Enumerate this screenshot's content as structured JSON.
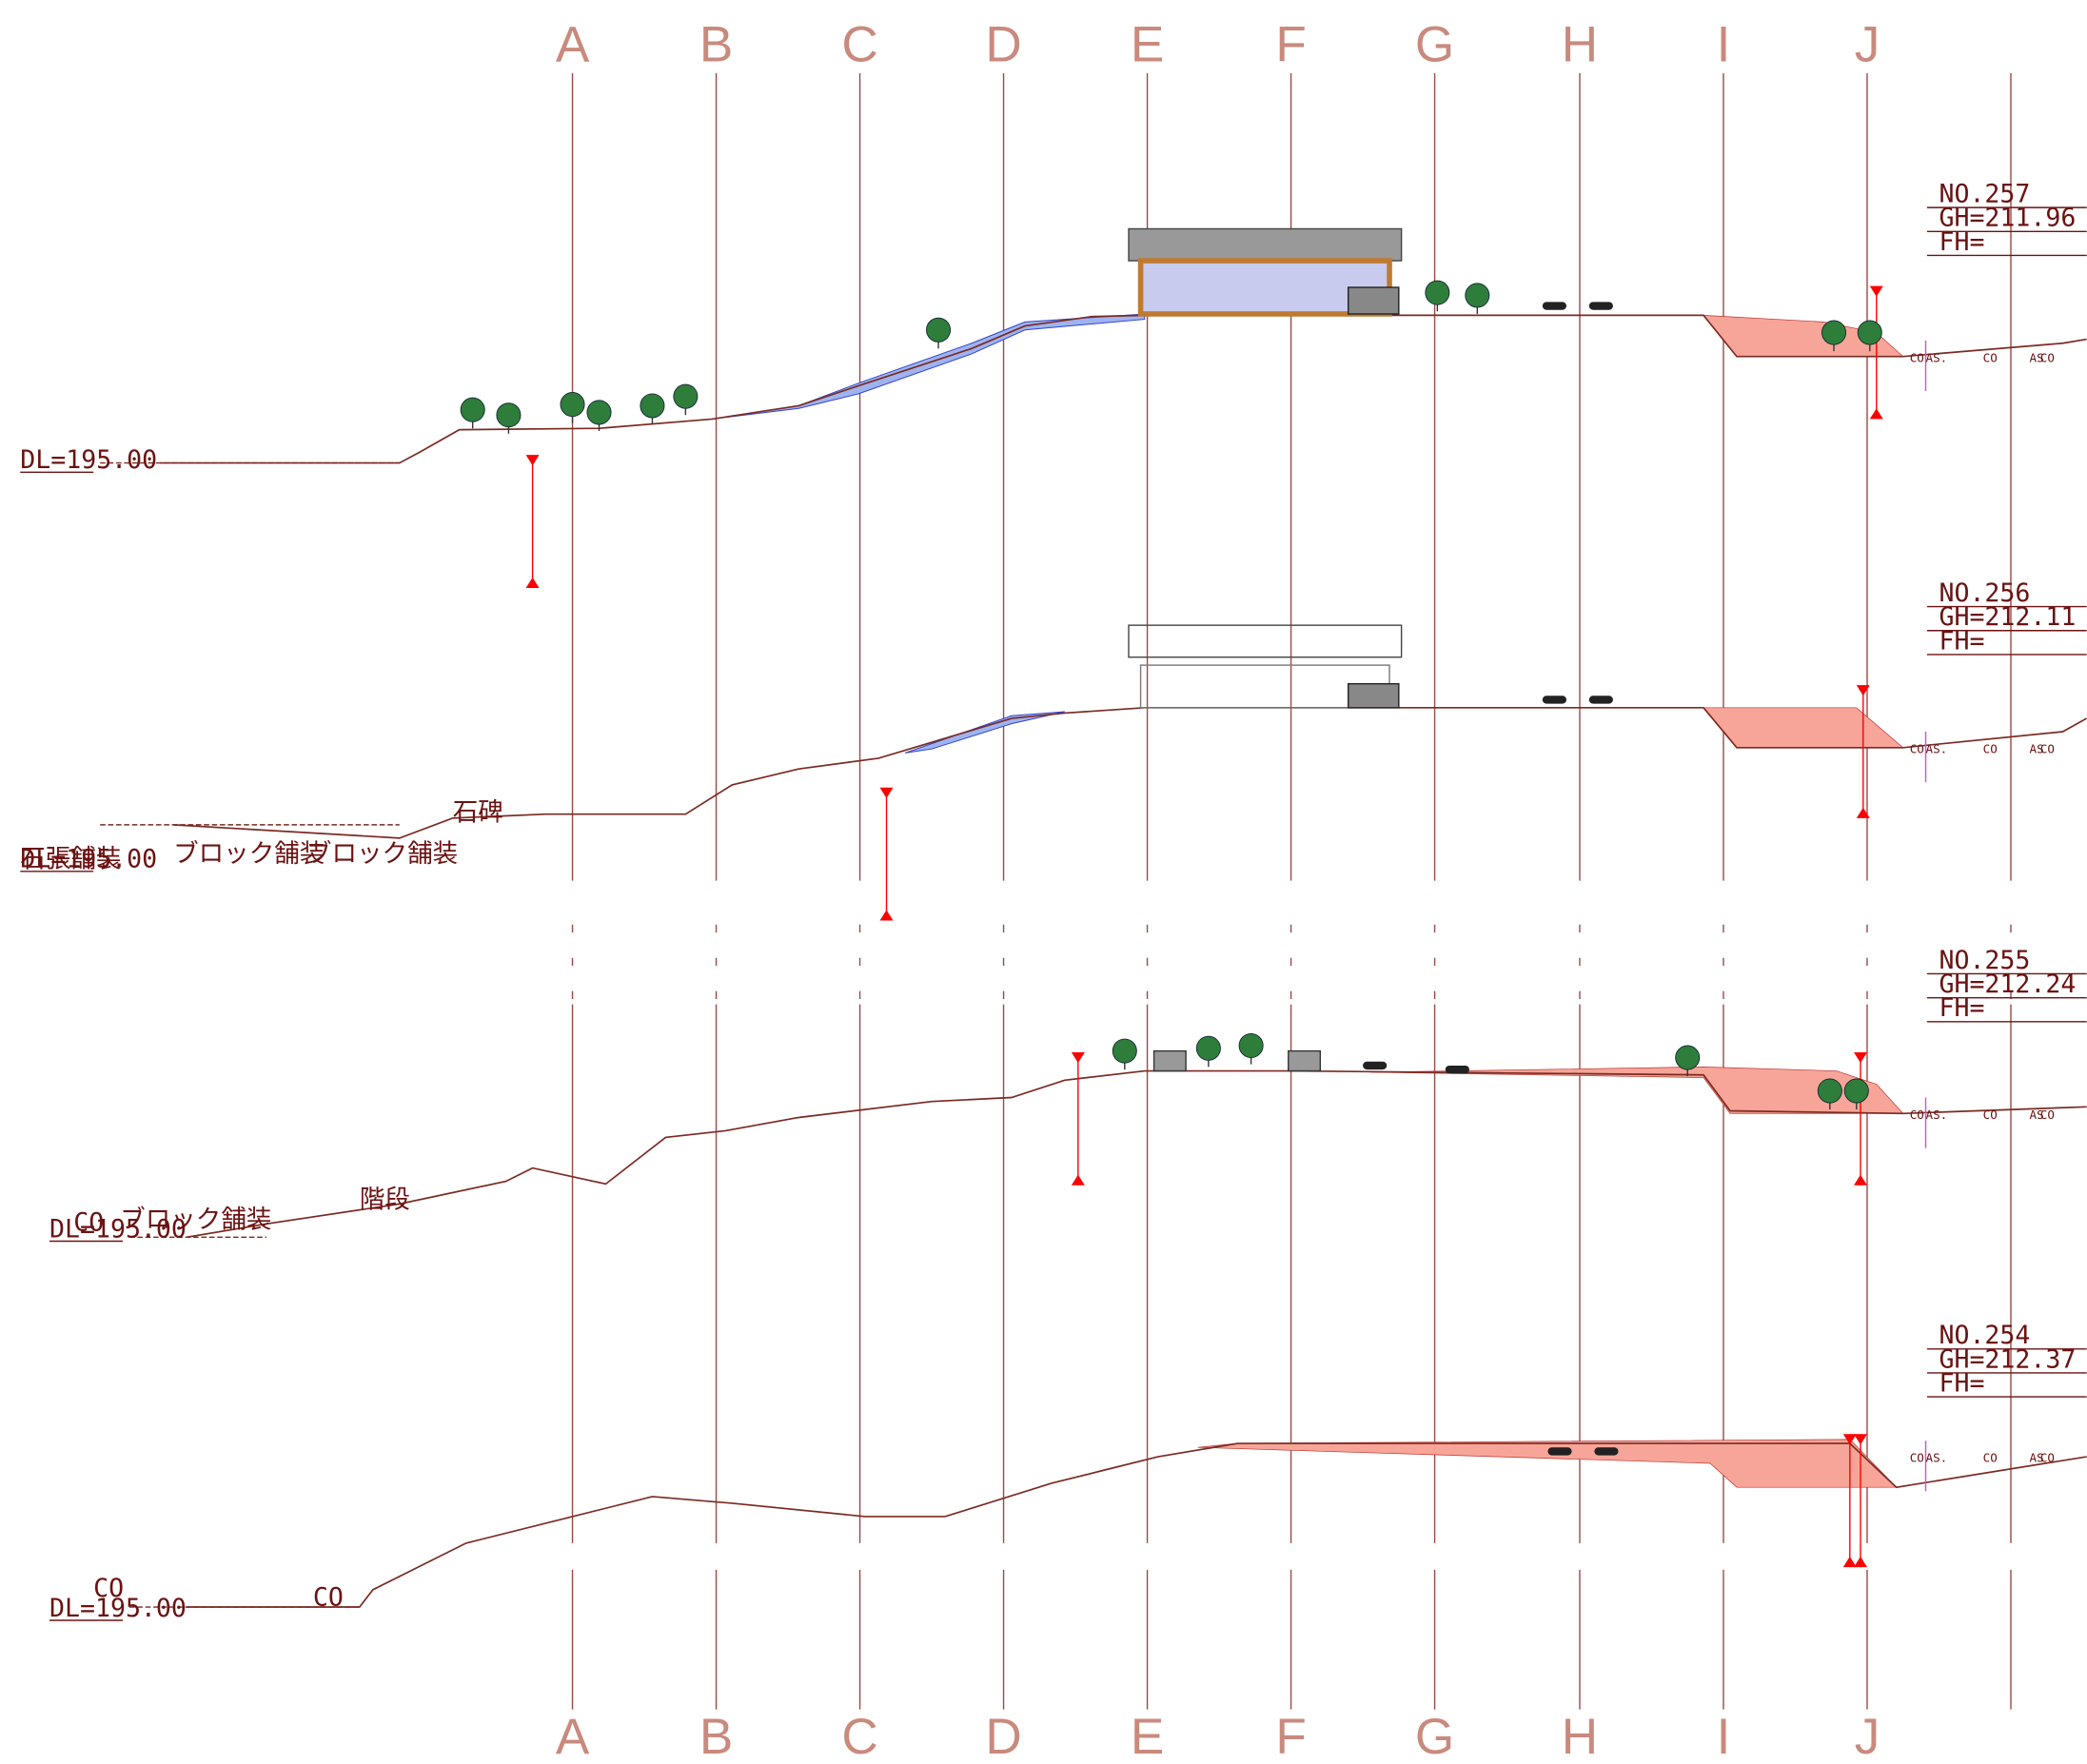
{
  "columns": [
    "A",
    "B",
    "C",
    "D",
    "E",
    "F",
    "G",
    "H",
    "I",
    "J"
  ],
  "sections": [
    {
      "no": "NO.257",
      "gh": "GH=211.96",
      "fh": "FH=",
      "dl": "DL=195.00",
      "labels": [
        "CO",
        "AS.",
        "CO",
        "AS",
        "CO"
      ]
    },
    {
      "no": "NO.256",
      "gh": "GH=212.11",
      "fh": "FH=",
      "dl": "DL=195.00",
      "labels": [
        "石碑",
        "石張舗装",
        "ブロック舗装",
        "ブロック舗装",
        "CO",
        "AS.",
        "CO",
        "AS",
        "CO"
      ]
    },
    {
      "no": "NO.255",
      "gh": "GH=212.24",
      "fh": "FH=",
      "dl": "DL=195.00",
      "labels": [
        "CO",
        "ブロック舗装",
        "階段",
        "CO",
        "AS.",
        "CO",
        "AS",
        "CO"
      ]
    },
    {
      "no": "NO.254",
      "gh": "GH=212.37",
      "fh": "FH=",
      "dl": "DL=195.00",
      "labels": [
        "CO",
        "CO",
        "AS.",
        "CO",
        "AS",
        "CO"
      ]
    }
  ]
}
